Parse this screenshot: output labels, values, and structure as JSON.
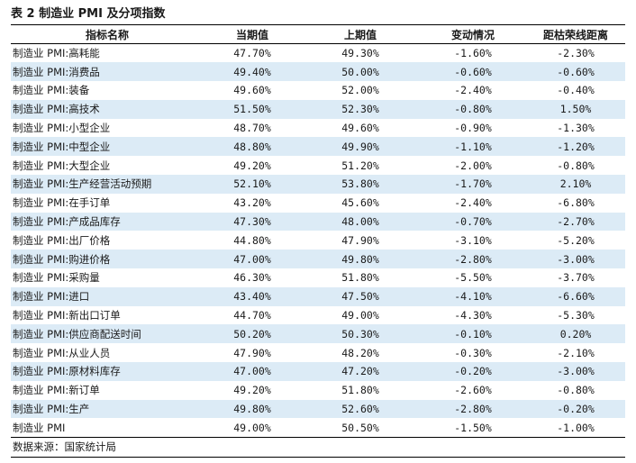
{
  "title": "表 2  制造业 PMI 及分项指数",
  "columns": [
    "指标名称",
    "当期值",
    "上期值",
    "变动情况",
    "距枯荣线距离"
  ],
  "rows": [
    [
      "制造业 PMI:高耗能",
      "47.70%",
      "49.30%",
      "-1.60%",
      "-2.30%"
    ],
    [
      "制造业 PMI:消费品",
      "49.40%",
      "50.00%",
      "-0.60%",
      "-0.60%"
    ],
    [
      "制造业 PMI:装备",
      "49.60%",
      "52.00%",
      "-2.40%",
      "-0.40%"
    ],
    [
      "制造业 PMI:高技术",
      "51.50%",
      "52.30%",
      "-0.80%",
      "1.50%"
    ],
    [
      "制造业 PMI:小型企业",
      "48.70%",
      "49.60%",
      "-0.90%",
      "-1.30%"
    ],
    [
      "制造业 PMI:中型企业",
      "48.80%",
      "49.90%",
      "-1.10%",
      "-1.20%"
    ],
    [
      "制造业 PMI:大型企业",
      "49.20%",
      "51.20%",
      "-2.00%",
      "-0.80%"
    ],
    [
      "制造业 PMI:生产经营活动预期",
      "52.10%",
      "53.80%",
      "-1.70%",
      "2.10%"
    ],
    [
      "制造业 PMI:在手订单",
      "43.20%",
      "45.60%",
      "-2.40%",
      "-6.80%"
    ],
    [
      "制造业 PMI:产成品库存",
      "47.30%",
      "48.00%",
      "-0.70%",
      "-2.70%"
    ],
    [
      "制造业 PMI:出厂价格",
      "44.80%",
      "47.90%",
      "-3.10%",
      "-5.20%"
    ],
    [
      "制造业 PMI:购进价格",
      "47.00%",
      "49.80%",
      "-2.80%",
      "-3.00%"
    ],
    [
      "制造业 PMI:采购量",
      "46.30%",
      "51.80%",
      "-5.50%",
      "-3.70%"
    ],
    [
      "制造业 PMI:进口",
      "43.40%",
      "47.50%",
      "-4.10%",
      "-6.60%"
    ],
    [
      "制造业 PMI:新出口订单",
      "44.70%",
      "49.00%",
      "-4.30%",
      "-5.30%"
    ],
    [
      "制造业 PMI:供应商配送时间",
      "50.20%",
      "50.30%",
      "-0.10%",
      "0.20%"
    ],
    [
      "制造业 PMI:从业人员",
      "47.90%",
      "48.20%",
      "-0.30%",
      "-2.10%"
    ],
    [
      "制造业 PMI:原材料库存",
      "47.00%",
      "47.20%",
      "-0.20%",
      "-3.00%"
    ],
    [
      "制造业 PMI:新订单",
      "49.20%",
      "51.80%",
      "-2.60%",
      "-0.80%"
    ],
    [
      "制造业 PMI:生产",
      "49.80%",
      "52.60%",
      "-2.80%",
      "-0.20%"
    ],
    [
      "制造业 PMI",
      "49.00%",
      "50.50%",
      "-1.50%",
      "-1.00%"
    ]
  ],
  "source": "数据来源：国家统计局",
  "colors": {
    "row_stripe": "#dcebf6",
    "rule": "#000000"
  }
}
